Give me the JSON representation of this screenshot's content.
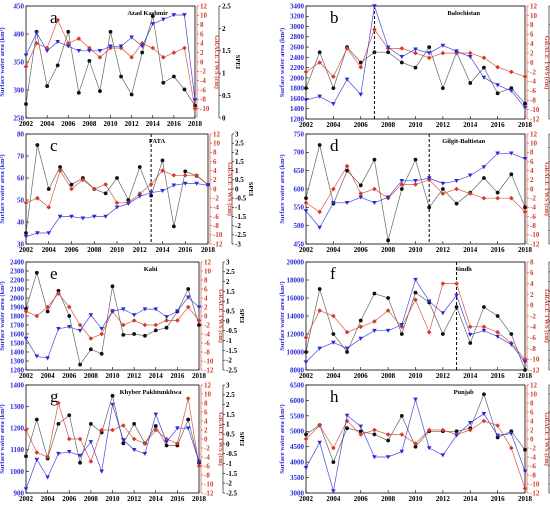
{
  "figure": {
    "x_ticks": [
      "2002",
      "2004",
      "2006",
      "2008",
      "2010",
      "2012",
      "2014",
      "2016",
      "2018"
    ]
  },
  "chart_data": [
    {
      "type": "line",
      "panel_letter": "a",
      "title": "Azad Kashmir",
      "ylabel_left": "Surface water area (km²)",
      "ylabel_grace": "GRACE TWS (cm)",
      "ylabel_spei": "SPEI",
      "ylim_left": [
        250,
        450
      ],
      "yticks_left": [
        250,
        300,
        350,
        400,
        450
      ],
      "ylim_grace": [
        -12,
        12
      ],
      "yticks_grace": [
        -10,
        -8,
        -6,
        -4,
        -2,
        0,
        2,
        4,
        6,
        8,
        10,
        12
      ],
      "ylim_spei": [
        0,
        2.5
      ],
      "yticks_spei": [
        0.0,
        0.5,
        1.0,
        1.5,
        2.0,
        2.5
      ],
      "xlim": [
        2002,
        2018
      ],
      "x": [
        2002,
        2003,
        2004,
        2005,
        2006,
        2007,
        2008,
        2009,
        2010,
        2011,
        2012,
        2013,
        2014,
        2015,
        2016,
        2017,
        2018
      ],
      "vline": null,
      "series": [
        {
          "axis": "left",
          "values": [
            275,
            404,
            307,
            344,
            404,
            295,
            352,
            298,
            404,
            324,
            292,
            367,
            432,
            313,
            324,
            301,
            272
          ]
        },
        {
          "axis": "grace",
          "values": [
            -1,
            4,
            3,
            9,
            4,
            5,
            3,
            1,
            3,
            3,
            1,
            4,
            3,
            1,
            2,
            3,
            -10
          ]
        },
        {
          "axis": "spei",
          "values": [
            1.4,
            1.9,
            1.5,
            1.7,
            1.6,
            1.5,
            1.5,
            1.5,
            1.6,
            1.6,
            1.8,
            1.6,
            2.1,
            2.2,
            2.3,
            2.3,
            0.4
          ]
        }
      ]
    },
    {
      "type": "line",
      "panel_letter": "b",
      "title": "Balochistan",
      "ylabel_left": "Surface water area (km²)",
      "ylabel_grace": "GRACE TWS (cm)",
      "ylabel_spei": "SPEI",
      "ylim_left": [
        1200,
        3400
      ],
      "yticks_left": [
        1200,
        1400,
        1600,
        1800,
        2000,
        2200,
        2400,
        2600,
        2800,
        3000,
        3200,
        3400
      ],
      "ylim_grace": [
        -12,
        12
      ],
      "yticks_grace": [
        -12,
        -10,
        -8,
        -6,
        -4,
        -2,
        0,
        2,
        4,
        6,
        8,
        10,
        12
      ],
      "ylim_spei": [
        -3,
        3
      ],
      "yticks_spei": [
        -3,
        -2,
        -1,
        0,
        1,
        2,
        3
      ],
      "xlim": [
        2002,
        2018
      ],
      "x": [
        2002,
        2003,
        2004,
        2005,
        2006,
        2007,
        2008,
        2009,
        2010,
        2011,
        2012,
        2013,
        2014,
        2015,
        2016,
        2017,
        2018
      ],
      "vline": 2007,
      "series": [
        {
          "axis": "left",
          "values": [
            1800,
            2500,
            1800,
            2600,
            2300,
            2500,
            2500,
            2300,
            2200,
            2600,
            1800,
            2500,
            1900,
            2200,
            1700,
            1800,
            1500
          ]
        },
        {
          "axis": "grace",
          "values": [
            -2,
            0,
            -3,
            3,
            -1,
            7,
            3,
            3,
            2,
            1,
            2,
            2,
            2,
            1,
            -1,
            -2,
            -3
          ]
        },
        {
          "axis": "spei",
          "values": [
            -2.0,
            -1.8,
            -2.2,
            -0.9,
            -1.7,
            3.0,
            0.8,
            0.3,
            0.7,
            0.5,
            0.9,
            0.6,
            0.3,
            -0.8,
            -1.2,
            -1.5,
            -2.4
          ]
        }
      ]
    },
    {
      "type": "line",
      "panel_letter": "c",
      "title": "FATA",
      "ylabel_left": "Surface water area (km²)",
      "ylabel_grace": "GRACE TWS (cm)",
      "ylabel_spei": "SPEI",
      "ylim_left": [
        30,
        80
      ],
      "yticks_left": [
        30,
        40,
        50,
        60,
        70,
        80
      ],
      "ylim_grace": [
        -12,
        12
      ],
      "yticks_grace": [
        -12,
        -10,
        -8,
        -6,
        -4,
        -2,
        0,
        2,
        4,
        6,
        8,
        10,
        12
      ],
      "ylim_spei": [
        -3,
        3
      ],
      "yticks_spei": [
        -3.0,
        -2.5,
        -2.0,
        -1.5,
        -1.0,
        -0.5,
        0.0,
        0.5,
        1.0,
        1.5,
        2.0,
        2.5,
        3.0
      ],
      "xlim": [
        2002,
        2018
      ],
      "x": [
        2002,
        2003,
        2004,
        2005,
        2006,
        2007,
        2008,
        2009,
        2010,
        2011,
        2012,
        2013,
        2014,
        2015,
        2016,
        2017,
        2018
      ],
      "vline": 2013,
      "series": [
        {
          "axis": "left",
          "values": [
            35,
            75,
            55,
            65,
            57,
            60,
            55,
            53,
            60,
            50,
            65,
            52,
            68,
            38,
            63,
            61,
            57
          ]
        },
        {
          "axis": "grace",
          "values": [
            -3,
            -2,
            -4,
            4,
            0,
            2,
            0,
            1,
            -3,
            -3,
            -1,
            1,
            4,
            3,
            3,
            3,
            1
          ]
        },
        {
          "axis": "spei",
          "values": [
            -2.6,
            -2.4,
            -2.4,
            -1.5,
            -1.5,
            -1.6,
            -1.5,
            -1.5,
            -1.0,
            -0.8,
            -0.4,
            -0.2,
            -0.1,
            0.2,
            0.3,
            0.3,
            0.2
          ]
        }
      ]
    },
    {
      "type": "line",
      "panel_letter": "d",
      "title": "Gilgit-Baltistan",
      "ylabel_left": "Surface water area (km²)",
      "ylabel_grace": "GRACE TWS (cm)",
      "ylabel_spei": "SPEI",
      "ylim_left": [
        450,
        750
      ],
      "yticks_left": [
        450,
        500,
        550,
        600,
        650,
        700,
        750
      ],
      "ylim_grace": [
        -12,
        12
      ],
      "yticks_grace": [
        -12,
        -10,
        -8,
        -6,
        -4,
        -2,
        0,
        2,
        4,
        6,
        8,
        10,
        12
      ],
      "ylim_spei": [
        -2,
        2
      ],
      "yticks_spei": [
        -2.0,
        -1.5,
        -1.0,
        -0.5,
        0.0,
        0.5,
        1.0,
        1.5,
        2.0
      ],
      "xlim": [
        2002,
        2018
      ],
      "x": [
        2002,
        2003,
        2004,
        2005,
        2006,
        2007,
        2008,
        2009,
        2010,
        2011,
        2012,
        2013,
        2014,
        2015,
        2016,
        2017,
        2018
      ],
      "vline": 2011,
      "series": [
        {
          "axis": "left",
          "values": [
            575,
            720,
            560,
            650,
            610,
            680,
            460,
            600,
            680,
            550,
            600,
            560,
            590,
            630,
            590,
            640,
            550
          ]
        },
        {
          "axis": "grace",
          "values": [
            -3,
            -5,
            0,
            5,
            -1,
            0,
            -2,
            1,
            1,
            2,
            -1,
            0,
            -1,
            -2,
            -2,
            -2,
            -5
          ]
        },
        {
          "axis": "spei",
          "values": [
            -0.8,
            -1.4,
            -0.5,
            -0.5,
            -0.3,
            -0.5,
            -0.3,
            0.3,
            0.3,
            0.4,
            0.2,
            0.3,
            0.5,
            0.8,
            1.3,
            1.3,
            1.1
          ]
        }
      ]
    },
    {
      "type": "line",
      "panel_letter": "e",
      "title": "Kahi",
      "ylabel_left": "Surface water area (km²)",
      "ylabel_grace": "GRACE TWS (cm)",
      "ylabel_spei": "SPEI",
      "ylim_left": [
        1200,
        2400
      ],
      "yticks_left": [
        1200,
        1300,
        1400,
        1500,
        1600,
        1700,
        1800,
        1900,
        2000,
        2100,
        2200,
        2300,
        2400
      ],
      "ylim_grace": [
        -12,
        12
      ],
      "yticks_grace": [
        -12,
        -10,
        -8,
        -6,
        -4,
        -2,
        0,
        2,
        4,
        6,
        8,
        10,
        12
      ],
      "ylim_spei": [
        -2.5,
        3
      ],
      "yticks_spei": [
        -2.5,
        -2.0,
        -1.5,
        -1.0,
        -0.5,
        0.0,
        0.5,
        1.0,
        1.5,
        2.0,
        2.5,
        3.0
      ],
      "xlim": [
        2002,
        2018
      ],
      "x": [
        2002,
        2003,
        2004,
        2005,
        2006,
        2007,
        2008,
        2009,
        2010,
        2011,
        2012,
        2013,
        2014,
        2015,
        2016,
        2017,
        2018
      ],
      "vline": null,
      "series": [
        {
          "axis": "left",
          "values": [
            1880,
            2280,
            1850,
            2080,
            1800,
            1260,
            1430,
            1380,
            2130,
            1590,
            1600,
            1580,
            1640,
            1670,
            1850,
            2100,
            1700
          ]
        },
        {
          "axis": "grace",
          "values": [
            1,
            0,
            2,
            5,
            2,
            -2,
            -5,
            -4,
            1,
            -2,
            -1,
            -2,
            -2,
            -1,
            -1,
            2,
            -1
          ]
        },
        {
          "axis": "spei",
          "values": [
            -0.9,
            -1.8,
            -1.9,
            -0.4,
            -0.3,
            -0.5,
            0.3,
            -0.4,
            0.5,
            0.6,
            0.3,
            0.6,
            0.6,
            0.2,
            0.5,
            1.2,
            0.7
          ]
        }
      ]
    },
    {
      "type": "line",
      "panel_letter": "f",
      "title": "Sindh",
      "ylabel_left": "Surface water area (km²)",
      "ylabel_grace": "GRACE TWS (cm)",
      "ylabel_spei": "SPEI",
      "ylim_left": [
        8000,
        20000
      ],
      "yticks_left": [
        8000,
        10000,
        12000,
        14000,
        16000,
        18000,
        20000
      ],
      "ylim_grace": [
        -12,
        8
      ],
      "yticks_grace": [
        -12,
        -10,
        -8,
        -6,
        -4,
        -2,
        0,
        2,
        4,
        6,
        8
      ],
      "ylim_spei": [
        -2.5,
        3
      ],
      "yticks_spei": [
        -2.5,
        -2.0,
        -1.5,
        -1.0,
        -0.5,
        0.0,
        0.5,
        1.0,
        1.5,
        2.0,
        2.5,
        3.0
      ],
      "xlim": [
        2002,
        2018
      ],
      "x": [
        2002,
        2003,
        2004,
        2005,
        2006,
        2007,
        2008,
        2009,
        2010,
        2011,
        2012,
        2013,
        2014,
        2015,
        2016,
        2017,
        2018
      ],
      "vline": 2013,
      "series": [
        {
          "axis": "left",
          "values": [
            10000,
            17000,
            12000,
            10000,
            13500,
            16500,
            16000,
            12000,
            16600,
            15500,
            12000,
            15000,
            11000,
            15000,
            14000,
            12000,
            8000
          ]
        },
        {
          "axis": "grace",
          "values": [
            -6,
            -1,
            -2,
            -5,
            -4,
            -3,
            -1,
            -4,
            1,
            -5,
            4,
            4,
            -4,
            -4,
            -5,
            -7,
            -10
          ]
        },
        {
          "axis": "spei",
          "values": [
            -2.1,
            -1.4,
            -1.1,
            -1.4,
            -0.9,
            -0.5,
            -0.5,
            -0.2,
            2.1,
            1.0,
            0.4,
            1.3,
            -0.7,
            -0.5,
            -0.8,
            -1.2,
            -2.1
          ]
        }
      ]
    },
    {
      "type": "line",
      "panel_letter": "g",
      "title": "Khyber Pakhtunkhwa",
      "ylabel_left": "Surface water area (km²)",
      "ylabel_grace": "GRACE TWS (cm)",
      "ylabel_spei": "SPEI",
      "ylim_left": [
        900,
        1400
      ],
      "yticks_left": [
        900,
        1000,
        1100,
        1200,
        1300,
        1400
      ],
      "ylim_grace": [
        -12,
        12
      ],
      "yticks_grace": [
        -12,
        -10,
        -8,
        -6,
        -4,
        -2,
        0,
        2,
        4,
        6,
        8,
        10,
        12
      ],
      "ylim_spei": [
        -2.5,
        3
      ],
      "yticks_spei": [
        -2.5,
        -2.0,
        -1.5,
        -1.0,
        -0.5,
        0.0,
        0.5,
        1.0,
        1.5,
        2.0,
        2.5,
        3.0
      ],
      "xlim": [
        2002,
        2018
      ],
      "x": [
        2002,
        2003,
        2004,
        2005,
        2006,
        2007,
        2008,
        2009,
        2010,
        2011,
        2012,
        2013,
        2014,
        2015,
        2016,
        2017,
        2018
      ],
      "vline": null,
      "series": [
        {
          "axis": "left",
          "values": [
            1070,
            1240,
            1060,
            1220,
            1260,
            1040,
            1220,
            1180,
            1350,
            1130,
            1220,
            1130,
            1210,
            1120,
            1120,
            1240,
            1040
          ]
        },
        {
          "axis": "grace",
          "values": [
            2,
            -3,
            -4,
            8,
            0,
            0,
            -5,
            2,
            2,
            3,
            0,
            -1,
            2,
            0,
            -1,
            9,
            -6
          ]
        },
        {
          "axis": "spei",
          "values": [
            -2.3,
            -0.8,
            -1.7,
            -0.5,
            -0.4,
            -0.6,
            0.1,
            -1.4,
            2.0,
            0.2,
            -0.3,
            -0.5,
            1.5,
            0.1,
            0.8,
            0.8,
            -0.9
          ]
        }
      ]
    },
    {
      "type": "line",
      "panel_letter": "h",
      "title": "Punjab",
      "ylabel_left": "Surface water area (km²)",
      "ylabel_grace": "GRACE TWS (cm)",
      "ylabel_spei": "SPEI",
      "ylim_left": [
        3000,
        6500
      ],
      "yticks_left": [
        3000,
        3500,
        4000,
        4500,
        5000,
        5500,
        6000,
        6500
      ],
      "ylim_grace": [
        -12,
        12
      ],
      "yticks_grace": [
        -12,
        -10,
        -8,
        -6,
        -4,
        -2,
        0,
        2,
        4,
        6,
        8,
        10,
        12
      ],
      "ylim_spei": [
        -3,
        3
      ],
      "yticks_spei": [
        -3.0,
        -2.5,
        -2.0,
        -1.5,
        -1.0,
        -0.5,
        0.0,
        0.5,
        1.0,
        1.5,
        2.0,
        2.5,
        3.0
      ],
      "xlim": [
        2002,
        2018
      ],
      "x": [
        2002,
        2003,
        2004,
        2005,
        2006,
        2007,
        2008,
        2009,
        2010,
        2011,
        2012,
        2013,
        2014,
        2015,
        2016,
        2017,
        2018
      ],
      "vline": null,
      "series": [
        {
          "axis": "left",
          "values": [
            4900,
            5200,
            4000,
            5100,
            5000,
            4900,
            4700,
            5500,
            4500,
            5000,
            5000,
            5000,
            5100,
            6200,
            4800,
            5000,
            4400
          ]
        },
        {
          "axis": "grace",
          "values": [
            0,
            3,
            -2,
            4,
            1,
            2,
            1,
            1,
            -1,
            2,
            2,
            1,
            2,
            4,
            3,
            -2,
            -11
          ]
        },
        {
          "axis": "spei",
          "values": [
            -1.6,
            -0.2,
            -2.9,
            1.3,
            0.7,
            -1.0,
            -1.0,
            -0.7,
            2.2,
            -0.5,
            -0.9,
            0.2,
            0.9,
            1.4,
            0.2,
            0.3,
            -1.8
          ]
        }
      ]
    }
  ]
}
